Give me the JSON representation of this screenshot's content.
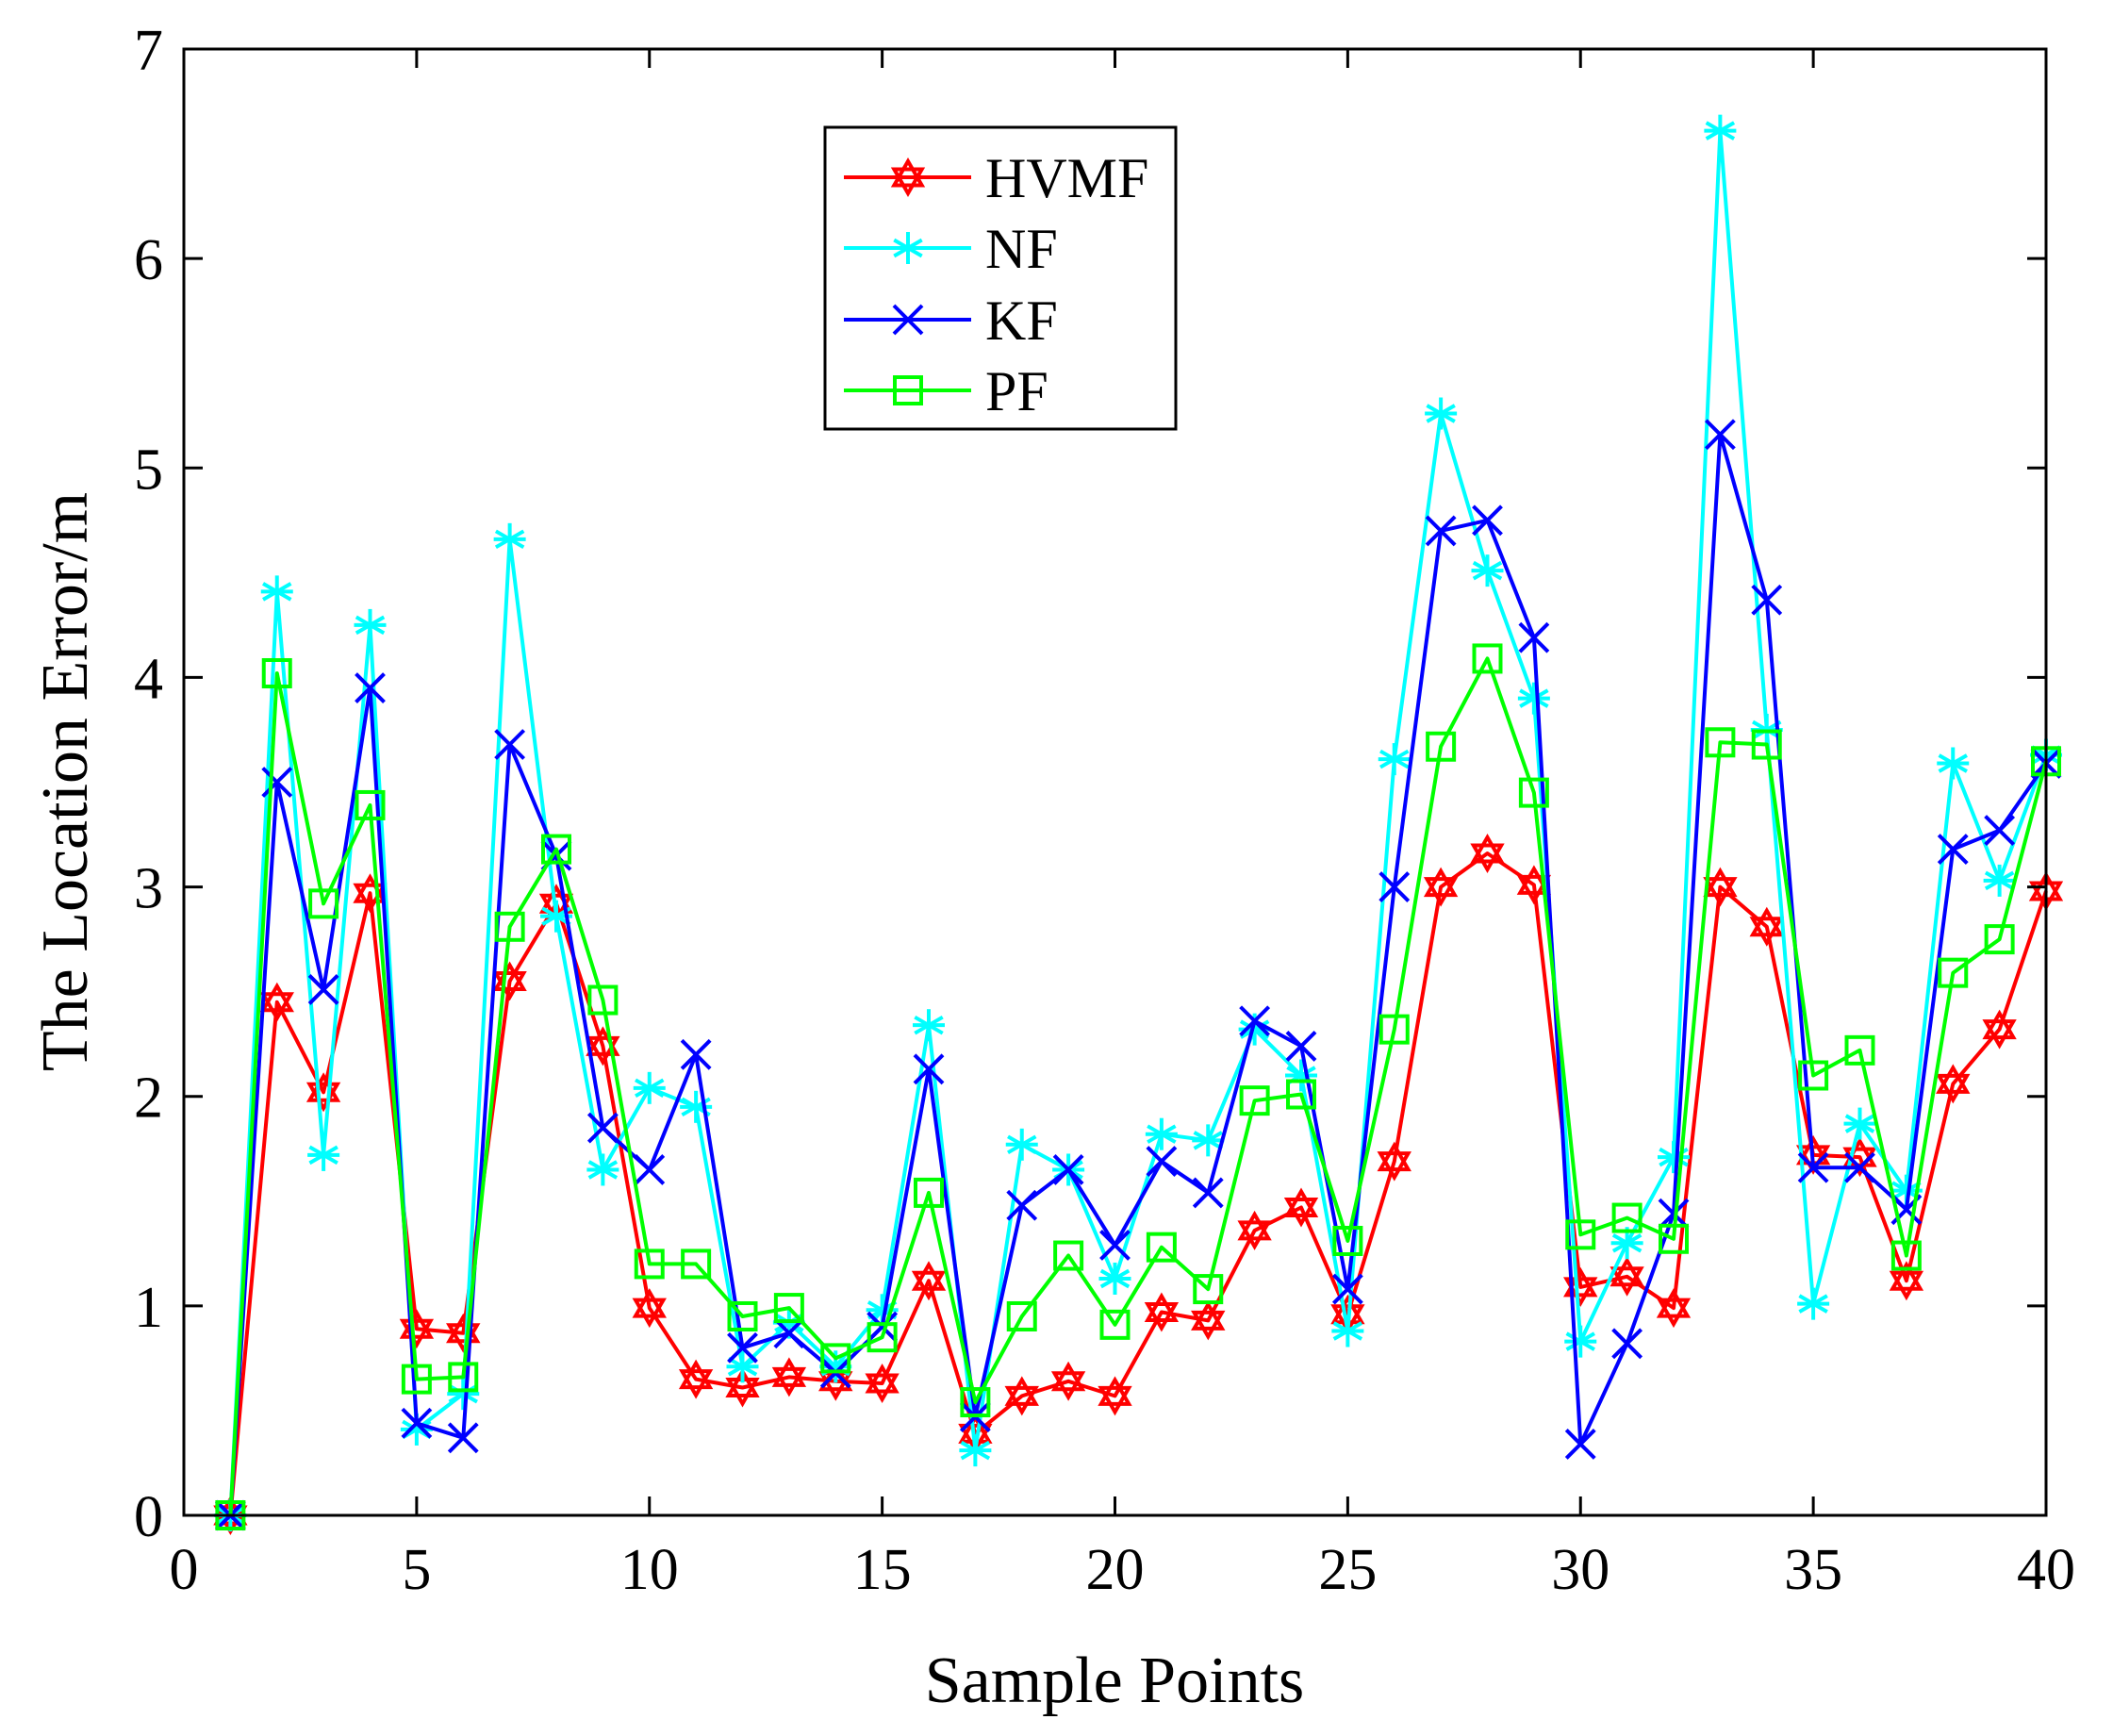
{
  "chart_data": {
    "type": "line",
    "title": "",
    "xlabel": "Sample Points",
    "ylabel": "The Location Error/m",
    "xlim": [
      0,
      40
    ],
    "ylim": [
      0,
      7
    ],
    "xticks": [
      0,
      5,
      10,
      15,
      20,
      25,
      30,
      35,
      40
    ],
    "yticks": [
      0,
      1,
      2,
      3,
      4,
      5,
      6,
      7
    ],
    "grid": false,
    "legend_position": "top-center",
    "x": [
      1,
      2,
      3,
      4,
      5,
      6,
      7,
      8,
      9,
      10,
      11,
      12,
      13,
      14,
      15,
      16,
      17,
      18,
      19,
      20,
      21,
      22,
      23,
      24,
      25,
      26,
      27,
      28,
      29,
      30,
      31,
      32,
      33,
      34,
      35,
      36,
      37,
      38,
      39,
      40
    ],
    "series": [
      {
        "name": "HVMF",
        "color": "#ff0000",
        "marker": "hexagram",
        "values": [
          0.0,
          2.45,
          2.02,
          2.97,
          0.89,
          0.87,
          2.55,
          2.92,
          2.24,
          0.99,
          0.65,
          0.61,
          0.66,
          0.64,
          0.63,
          1.12,
          0.39,
          0.57,
          0.64,
          0.57,
          0.97,
          0.93,
          1.36,
          1.47,
          0.96,
          1.69,
          3.0,
          3.16,
          3.01,
          1.09,
          1.14,
          0.99,
          3.0,
          2.81,
          1.72,
          1.71,
          1.12,
          2.06,
          2.32,
          2.98
        ]
      },
      {
        "name": "NF",
        "color": "#00ffff",
        "marker": "asterisk",
        "values": [
          0.0,
          4.41,
          1.72,
          4.25,
          0.41,
          0.58,
          4.66,
          2.86,
          1.65,
          2.04,
          1.95,
          0.71,
          0.92,
          0.71,
          0.98,
          2.34,
          0.31,
          1.77,
          1.65,
          1.13,
          1.82,
          1.79,
          2.32,
          2.1,
          0.88,
          3.61,
          5.26,
          4.51,
          3.9,
          0.83,
          1.3,
          1.71,
          6.61,
          3.75,
          1.01,
          1.87,
          1.55,
          3.59,
          3.03,
          3.63
        ]
      },
      {
        "name": "KF",
        "color": "#0000ff",
        "marker": "x",
        "values": [
          0.0,
          3.5,
          2.51,
          3.95,
          0.44,
          0.37,
          3.68,
          3.15,
          1.85,
          1.65,
          2.2,
          0.8,
          0.87,
          0.68,
          0.9,
          2.13,
          0.47,
          1.48,
          1.65,
          1.29,
          1.69,
          1.54,
          2.36,
          2.24,
          1.08,
          3.0,
          4.7,
          4.75,
          4.19,
          0.34,
          0.82,
          1.44,
          5.16,
          4.37,
          1.66,
          1.66,
          1.46,
          3.18,
          3.27,
          3.59
        ]
      },
      {
        "name": "PF",
        "color": "#00ff00",
        "marker": "square",
        "values": [
          0.0,
          4.02,
          2.92,
          3.39,
          0.65,
          0.66,
          2.81,
          3.18,
          2.46,
          1.2,
          1.2,
          0.95,
          0.99,
          0.75,
          0.85,
          1.54,
          0.54,
          0.95,
          1.24,
          0.91,
          1.28,
          1.08,
          1.98,
          2.01,
          1.31,
          2.32,
          3.67,
          4.09,
          3.45,
          1.34,
          1.42,
          1.32,
          3.69,
          3.68,
          2.1,
          2.22,
          1.24,
          2.59,
          2.75,
          3.6
        ]
      }
    ]
  }
}
